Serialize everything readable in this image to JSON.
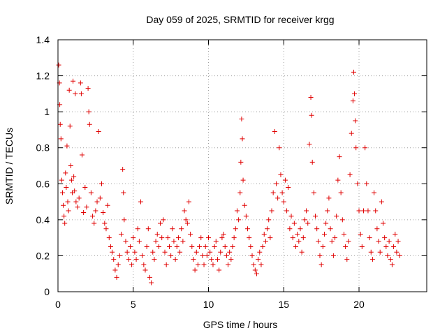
{
  "chart_data": {
    "type": "scatter",
    "title": "Day 059 of 2025, SRMTID for receiver krgg",
    "xlabel": "GPS time / hours",
    "ylabel": "SRMTID / TECUs",
    "xlim": [
      0,
      24.5
    ],
    "ylim": [
      0,
      1.4
    ],
    "x_ticks": [
      0,
      5,
      10,
      15,
      20
    ],
    "y_ticks": [
      0,
      0.2,
      0.4,
      0.6,
      0.8,
      1,
      1.2,
      1.4
    ],
    "x_tick_labels": [
      "0",
      "5",
      "10",
      "15",
      "20"
    ],
    "y_tick_labels": [
      "0",
      "0.2",
      "0.4",
      "0.6",
      "0.8",
      "1",
      "1.2",
      "1.4"
    ],
    "grid": true,
    "marker": "plus",
    "color": "#e00000",
    "series": [
      {
        "name": "SRMTID",
        "points": [
          [
            0.05,
            1.26
          ],
          [
            0.1,
            1.16
          ],
          [
            0.12,
            1.04
          ],
          [
            0.15,
            0.93
          ],
          [
            0.2,
            0.85
          ],
          [
            0.25,
            0.62
          ],
          [
            0.3,
            0.55
          ],
          [
            0.35,
            0.48
          ],
          [
            0.4,
            0.42
          ],
          [
            0.45,
            0.38
          ],
          [
            0.5,
            0.66
          ],
          [
            0.55,
            0.58
          ],
          [
            0.6,
            0.81
          ],
          [
            0.65,
            0.5
          ],
          [
            0.7,
            0.45
          ],
          [
            0.75,
            1.12
          ],
          [
            0.8,
            0.92
          ],
          [
            0.85,
            0.7
          ],
          [
            0.9,
            0.62
          ],
          [
            0.95,
            0.55
          ],
          [
            1.0,
            1.17
          ],
          [
            1.05,
            0.64
          ],
          [
            1.1,
            0.56
          ],
          [
            1.15,
            1.1
          ],
          [
            1.2,
            0.5
          ],
          [
            1.3,
            0.47
          ],
          [
            1.4,
            0.52
          ],
          [
            1.5,
            1.16
          ],
          [
            1.55,
            1.1
          ],
          [
            1.6,
            0.76
          ],
          [
            1.7,
            0.44
          ],
          [
            1.8,
            0.58
          ],
          [
            1.9,
            0.47
          ],
          [
            2.0,
            1.13
          ],
          [
            2.05,
            1.0
          ],
          [
            2.1,
            0.93
          ],
          [
            2.2,
            0.55
          ],
          [
            2.3,
            0.42
          ],
          [
            2.4,
            0.38
          ],
          [
            2.5,
            0.45
          ],
          [
            2.6,
            0.5
          ],
          [
            2.7,
            0.89
          ],
          [
            2.8,
            0.52
          ],
          [
            2.9,
            0.6
          ],
          [
            3.0,
            0.44
          ],
          [
            3.1,
            0.38
          ],
          [
            3.2,
            0.35
          ],
          [
            3.3,
            0.48
          ],
          [
            3.4,
            0.3
          ],
          [
            3.5,
            0.25
          ],
          [
            3.6,
            0.22
          ],
          [
            3.7,
            0.18
          ],
          [
            3.8,
            0.12
          ],
          [
            3.9,
            0.08
          ],
          [
            4.0,
            0.15
          ],
          [
            4.1,
            0.2
          ],
          [
            4.2,
            0.32
          ],
          [
            4.3,
            0.68
          ],
          [
            4.35,
            0.55
          ],
          [
            4.4,
            0.4
          ],
          [
            4.5,
            0.28
          ],
          [
            4.6,
            0.22
          ],
          [
            4.7,
            0.18
          ],
          [
            4.8,
            0.25
          ],
          [
            4.9,
            0.15
          ],
          [
            5.0,
            0.3
          ],
          [
            5.1,
            0.22
          ],
          [
            5.2,
            0.18
          ],
          [
            5.3,
            0.35
          ],
          [
            5.4,
            0.28
          ],
          [
            5.5,
            0.5
          ],
          [
            5.6,
            0.2
          ],
          [
            5.7,
            0.15
          ],
          [
            5.8,
            0.12
          ],
          [
            5.9,
            0.25
          ],
          [
            6.0,
            0.35
          ],
          [
            6.1,
            0.08
          ],
          [
            6.2,
            0.05
          ],
          [
            6.3,
            0.22
          ],
          [
            6.4,
            0.18
          ],
          [
            6.5,
            0.28
          ],
          [
            6.6,
            0.32
          ],
          [
            6.7,
            0.25
          ],
          [
            6.8,
            0.38
          ],
          [
            6.9,
            0.3
          ],
          [
            7.0,
            0.4
          ],
          [
            7.1,
            0.22
          ],
          [
            7.2,
            0.15
          ],
          [
            7.3,
            0.3
          ],
          [
            7.4,
            0.25
          ],
          [
            7.5,
            0.2
          ],
          [
            7.6,
            0.35
          ],
          [
            7.7,
            0.28
          ],
          [
            7.8,
            0.18
          ],
          [
            7.9,
            0.25
          ],
          [
            8.0,
            0.3
          ],
          [
            8.1,
            0.22
          ],
          [
            8.2,
            0.35
          ],
          [
            8.3,
            0.28
          ],
          [
            8.4,
            0.45
          ],
          [
            8.5,
            0.4
          ],
          [
            8.6,
            0.38
          ],
          [
            8.7,
            0.5
          ],
          [
            8.8,
            0.32
          ],
          [
            8.9,
            0.25
          ],
          [
            9.0,
            0.18
          ],
          [
            9.1,
            0.12
          ],
          [
            9.2,
            0.22
          ],
          [
            9.3,
            0.15
          ],
          [
            9.4,
            0.25
          ],
          [
            9.5,
            0.3
          ],
          [
            9.6,
            0.2
          ],
          [
            9.7,
            0.15
          ],
          [
            9.8,
            0.25
          ],
          [
            9.9,
            0.2
          ],
          [
            10.0,
            0.3
          ],
          [
            10.1,
            0.22
          ],
          [
            10.2,
            0.18
          ],
          [
            10.3,
            0.15
          ],
          [
            10.4,
            0.25
          ],
          [
            10.5,
            0.28
          ],
          [
            10.6,
            0.18
          ],
          [
            10.7,
            0.12
          ],
          [
            10.8,
            0.22
          ],
          [
            10.9,
            0.3
          ],
          [
            11.0,
            0.32
          ],
          [
            11.1,
            0.25
          ],
          [
            11.2,
            0.2
          ],
          [
            11.3,
            0.15
          ],
          [
            11.4,
            0.22
          ],
          [
            11.5,
            0.18
          ],
          [
            11.6,
            0.25
          ],
          [
            11.7,
            0.3
          ],
          [
            11.8,
            0.35
          ],
          [
            11.9,
            0.45
          ],
          [
            12.0,
            0.4
          ],
          [
            12.1,
            0.55
          ],
          [
            12.15,
            0.72
          ],
          [
            12.2,
            0.96
          ],
          [
            12.25,
            0.85
          ],
          [
            12.3,
            0.62
          ],
          [
            12.4,
            0.48
          ],
          [
            12.5,
            0.42
          ],
          [
            12.6,
            0.35
          ],
          [
            12.7,
            0.3
          ],
          [
            12.8,
            0.25
          ],
          [
            12.9,
            0.2
          ],
          [
            13.0,
            0.15
          ],
          [
            13.1,
            0.12
          ],
          [
            13.2,
            0.1
          ],
          [
            13.3,
            0.18
          ],
          [
            13.4,
            0.22
          ],
          [
            13.5,
            0.15
          ],
          [
            13.6,
            0.25
          ],
          [
            13.7,
            0.32
          ],
          [
            13.8,
            0.28
          ],
          [
            13.9,
            0.35
          ],
          [
            14.0,
            0.4
          ],
          [
            14.1,
            0.3
          ],
          [
            14.2,
            0.45
          ],
          [
            14.3,
            0.55
          ],
          [
            14.4,
            0.89
          ],
          [
            14.5,
            0.6
          ],
          [
            14.6,
            0.52
          ],
          [
            14.7,
            0.8
          ],
          [
            14.8,
            0.65
          ],
          [
            14.9,
            0.55
          ],
          [
            15.0,
            0.5
          ],
          [
            15.1,
            0.62
          ],
          [
            15.2,
            0.45
          ],
          [
            15.3,
            0.58
          ],
          [
            15.4,
            0.35
          ],
          [
            15.5,
            0.42
          ],
          [
            15.6,
            0.3
          ],
          [
            15.7,
            0.38
          ],
          [
            15.8,
            0.25
          ],
          [
            15.9,
            0.32
          ],
          [
            16.0,
            0.28
          ],
          [
            16.1,
            0.35
          ],
          [
            16.2,
            0.22
          ],
          [
            16.3,
            0.3
          ],
          [
            16.4,
            0.4
          ],
          [
            16.5,
            0.45
          ],
          [
            16.6,
            0.38
          ],
          [
            16.7,
            0.82
          ],
          [
            16.8,
            1.08
          ],
          [
            16.85,
            0.98
          ],
          [
            16.9,
            0.72
          ],
          [
            17.0,
            0.55
          ],
          [
            17.1,
            0.42
          ],
          [
            17.2,
            0.35
          ],
          [
            17.3,
            0.28
          ],
          [
            17.4,
            0.2
          ],
          [
            17.5,
            0.15
          ],
          [
            17.6,
            0.25
          ],
          [
            17.7,
            0.32
          ],
          [
            17.8,
            0.38
          ],
          [
            17.9,
            0.45
          ],
          [
            18.0,
            0.52
          ],
          [
            18.1,
            0.35
          ],
          [
            18.2,
            0.28
          ],
          [
            18.3,
            0.2
          ],
          [
            18.4,
            0.3
          ],
          [
            18.5,
            0.42
          ],
          [
            18.6,
            0.62
          ],
          [
            18.7,
            0.75
          ],
          [
            18.8,
            0.55
          ],
          [
            18.9,
            0.4
          ],
          [
            19.0,
            0.32
          ],
          [
            19.1,
            0.25
          ],
          [
            19.2,
            0.18
          ],
          [
            19.3,
            0.28
          ],
          [
            19.4,
            0.65
          ],
          [
            19.5,
            0.88
          ],
          [
            19.6,
            1.06
          ],
          [
            19.65,
            1.22
          ],
          [
            19.7,
            1.1
          ],
          [
            19.75,
            0.95
          ],
          [
            19.8,
            0.8
          ],
          [
            19.9,
            0.6
          ],
          [
            20.0,
            0.45
          ],
          [
            20.1,
            0.32
          ],
          [
            20.2,
            0.25
          ],
          [
            20.3,
            0.45
          ],
          [
            20.4,
            0.8
          ],
          [
            20.5,
            0.6
          ],
          [
            20.6,
            0.45
          ],
          [
            20.7,
            0.3
          ],
          [
            20.8,
            0.22
          ],
          [
            20.9,
            0.18
          ],
          [
            21.0,
            0.55
          ],
          [
            21.1,
            0.45
          ],
          [
            21.2,
            0.35
          ],
          [
            21.3,
            0.28
          ],
          [
            21.4,
            0.22
          ],
          [
            21.5,
            0.5
          ],
          [
            21.6,
            0.38
          ],
          [
            21.7,
            0.3
          ],
          [
            21.8,
            0.25
          ],
          [
            21.9,
            0.2
          ],
          [
            22.0,
            0.28
          ],
          [
            22.1,
            0.18
          ],
          [
            22.2,
            0.15
          ],
          [
            22.3,
            0.25
          ],
          [
            22.4,
            0.32
          ],
          [
            22.5,
            0.22
          ],
          [
            22.6,
            0.28
          ],
          [
            22.7,
            0.2
          ]
        ]
      }
    ]
  }
}
